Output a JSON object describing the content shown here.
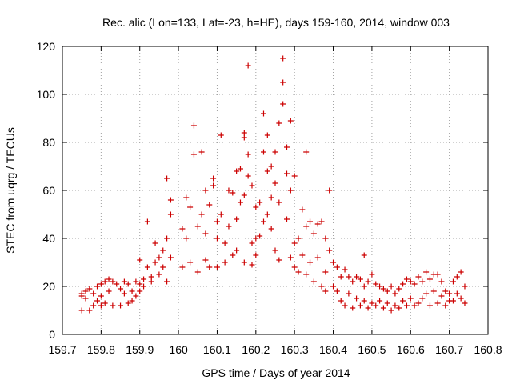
{
  "chart_data": {
    "type": "scatter",
    "title": "Rec. alic (Lon=133, Lat=-23, h=HE), days 159-160, 2014, window 003",
    "xlabel": "GPS time / Days of year 2014",
    "ylabel": "STEC from uqrg / TECUs",
    "xlim": [
      159.7,
      160.8
    ],
    "ylim": [
      0,
      120
    ],
    "x_ticks": [
      159.7,
      159.8,
      159.9,
      160.0,
      160.1,
      160.2,
      160.3,
      160.4,
      160.5,
      160.6,
      160.7,
      160.8
    ],
    "x_tick_labels": [
      "159.7",
      "159.8",
      "159.9",
      "160",
      "160.1",
      "160.2",
      "160.3",
      "160.4",
      "160.5",
      "160.6",
      "160.7",
      "160.8"
    ],
    "y_ticks": [
      0,
      20,
      40,
      60,
      80,
      100,
      120
    ],
    "y_tick_labels": [
      "0",
      "20",
      "40",
      "60",
      "80",
      "100",
      "120"
    ],
    "grid": true,
    "marker": "+",
    "color": "#cc0000",
    "points": [
      [
        159.75,
        17
      ],
      [
        159.75,
        16
      ],
      [
        159.75,
        10
      ],
      [
        159.76,
        18
      ],
      [
        159.76,
        15
      ],
      [
        159.77,
        19
      ],
      [
        159.77,
        10
      ],
      [
        159.78,
        17
      ],
      [
        159.78,
        12
      ],
      [
        159.79,
        20
      ],
      [
        159.79,
        14
      ],
      [
        159.8,
        21
      ],
      [
        159.8,
        16
      ],
      [
        159.8,
        12
      ],
      [
        159.81,
        22
      ],
      [
        159.81,
        13
      ],
      [
        159.82,
        23
      ],
      [
        159.82,
        18
      ],
      [
        159.83,
        22
      ],
      [
        159.83,
        12
      ],
      [
        159.84,
        21
      ],
      [
        159.85,
        19
      ],
      [
        159.85,
        12
      ],
      [
        159.86,
        22
      ],
      [
        159.86,
        17
      ],
      [
        159.87,
        21
      ],
      [
        159.87,
        13
      ],
      [
        159.88,
        18
      ],
      [
        159.88,
        14
      ],
      [
        159.89,
        22
      ],
      [
        159.89,
        16
      ],
      [
        159.9,
        21
      ],
      [
        159.9,
        18
      ],
      [
        159.9,
        31
      ],
      [
        159.91,
        23
      ],
      [
        159.91,
        20
      ],
      [
        159.92,
        47
      ],
      [
        159.92,
        28
      ],
      [
        159.93,
        24
      ],
      [
        159.93,
        22
      ],
      [
        159.94,
        38
      ],
      [
        159.94,
        30
      ],
      [
        159.95,
        32
      ],
      [
        159.95,
        25
      ],
      [
        159.96,
        35
      ],
      [
        159.96,
        28
      ],
      [
        159.97,
        65
      ],
      [
        159.97,
        40
      ],
      [
        159.97,
        22
      ],
      [
        159.98,
        56
      ],
      [
        159.98,
        50
      ],
      [
        159.98,
        32
      ],
      [
        160.01,
        44
      ],
      [
        160.01,
        28
      ],
      [
        160.02,
        57
      ],
      [
        160.02,
        40
      ],
      [
        160.03,
        53
      ],
      [
        160.03,
        30
      ],
      [
        160.04,
        87
      ],
      [
        160.04,
        75
      ],
      [
        160.05,
        45
      ],
      [
        160.05,
        26
      ],
      [
        160.06,
        76
      ],
      [
        160.06,
        50
      ],
      [
        160.07,
        60
      ],
      [
        160.07,
        42
      ],
      [
        160.07,
        31
      ],
      [
        160.08,
        54
      ],
      [
        160.08,
        28
      ],
      [
        160.09,
        62
      ],
      [
        160.09,
        65
      ],
      [
        160.1,
        47
      ],
      [
        160.1,
        40
      ],
      [
        160.1,
        28
      ],
      [
        160.11,
        83
      ],
      [
        160.11,
        50
      ],
      [
        160.12,
        38
      ],
      [
        160.12,
        30
      ],
      [
        160.13,
        60
      ],
      [
        160.13,
        45
      ],
      [
        160.14,
        59
      ],
      [
        160.14,
        33
      ],
      [
        160.15,
        68
      ],
      [
        160.15,
        48
      ],
      [
        160.15,
        35
      ],
      [
        160.16,
        69
      ],
      [
        160.16,
        55
      ],
      [
        160.17,
        84
      ],
      [
        160.17,
        82
      ],
      [
        160.17,
        58
      ],
      [
        160.17,
        30
      ],
      [
        160.18,
        75
      ],
      [
        160.18,
        112
      ],
      [
        160.18,
        66
      ],
      [
        160.19,
        62
      ],
      [
        160.19,
        38
      ],
      [
        160.19,
        29
      ],
      [
        160.2,
        53
      ],
      [
        160.2,
        40
      ],
      [
        160.2,
        33
      ],
      [
        160.21,
        55
      ],
      [
        160.21,
        41
      ],
      [
        160.22,
        92
      ],
      [
        160.22,
        76
      ],
      [
        160.22,
        47
      ],
      [
        160.23,
        83
      ],
      [
        160.23,
        68
      ],
      [
        160.23,
        50
      ],
      [
        160.24,
        70
      ],
      [
        160.24,
        57
      ],
      [
        160.24,
        44
      ],
      [
        160.25,
        76
      ],
      [
        160.25,
        63
      ],
      [
        160.25,
        35
      ],
      [
        160.26,
        88
      ],
      [
        160.26,
        55
      ],
      [
        160.26,
        31
      ],
      [
        160.27,
        115
      ],
      [
        160.27,
        105
      ],
      [
        160.27,
        96
      ],
      [
        160.28,
        78
      ],
      [
        160.28,
        67
      ],
      [
        160.28,
        48
      ],
      [
        160.29,
        89
      ],
      [
        160.29,
        60
      ],
      [
        160.29,
        32
      ],
      [
        160.3,
        66
      ],
      [
        160.3,
        38
      ],
      [
        160.3,
        28
      ],
      [
        160.31,
        40
      ],
      [
        160.31,
        26
      ],
      [
        160.32,
        52
      ],
      [
        160.32,
        33
      ],
      [
        160.33,
        76
      ],
      [
        160.33,
        45
      ],
      [
        160.33,
        25
      ],
      [
        160.34,
        47
      ],
      [
        160.34,
        30
      ],
      [
        160.35,
        42
      ],
      [
        160.35,
        22
      ],
      [
        160.36,
        46
      ],
      [
        160.36,
        32
      ],
      [
        160.37,
        47
      ],
      [
        160.37,
        20
      ],
      [
        160.38,
        40
      ],
      [
        160.38,
        26
      ],
      [
        160.38,
        18
      ],
      [
        160.39,
        60
      ],
      [
        160.39,
        35
      ],
      [
        160.4,
        30
      ],
      [
        160.4,
        20
      ],
      [
        160.41,
        28
      ],
      [
        160.41,
        18
      ],
      [
        160.42,
        24
      ],
      [
        160.42,
        14
      ],
      [
        160.43,
        27
      ],
      [
        160.43,
        12
      ],
      [
        160.44,
        24
      ],
      [
        160.44,
        17
      ],
      [
        160.45,
        22
      ],
      [
        160.45,
        11
      ],
      [
        160.46,
        24
      ],
      [
        160.46,
        15
      ],
      [
        160.47,
        23
      ],
      [
        160.47,
        12
      ],
      [
        160.48,
        33
      ],
      [
        160.48,
        20
      ],
      [
        160.48,
        14
      ],
      [
        160.49,
        22
      ],
      [
        160.49,
        11
      ],
      [
        160.5,
        25
      ],
      [
        160.5,
        13
      ],
      [
        160.51,
        21
      ],
      [
        160.51,
        12
      ],
      [
        160.52,
        20
      ],
      [
        160.52,
        14
      ],
      [
        160.53,
        19
      ],
      [
        160.53,
        11
      ],
      [
        160.54,
        18
      ],
      [
        160.54,
        13
      ],
      [
        160.55,
        20
      ],
      [
        160.55,
        10
      ],
      [
        160.56,
        17
      ],
      [
        160.56,
        12
      ],
      [
        160.57,
        19
      ],
      [
        160.57,
        11
      ],
      [
        160.58,
        21
      ],
      [
        160.58,
        14
      ],
      [
        160.59,
        23
      ],
      [
        160.59,
        12
      ],
      [
        160.6,
        22
      ],
      [
        160.6,
        15
      ],
      [
        160.61,
        21
      ],
      [
        160.61,
        12
      ],
      [
        160.62,
        24
      ],
      [
        160.62,
        13
      ],
      [
        160.63,
        22
      ],
      [
        160.63,
        15
      ],
      [
        160.64,
        26
      ],
      [
        160.64,
        17
      ],
      [
        160.65,
        23
      ],
      [
        160.65,
        12
      ],
      [
        160.66,
        25
      ],
      [
        160.66,
        18
      ],
      [
        160.67,
        25
      ],
      [
        160.67,
        13
      ],
      [
        160.68,
        22
      ],
      [
        160.68,
        16
      ],
      [
        160.69,
        18
      ],
      [
        160.69,
        12
      ],
      [
        160.7,
        17
      ],
      [
        160.7,
        14
      ],
      [
        160.71,
        22
      ],
      [
        160.71,
        14
      ],
      [
        160.72,
        24
      ],
      [
        160.72,
        17
      ],
      [
        160.73,
        26
      ],
      [
        160.73,
        15
      ],
      [
        160.74,
        20
      ],
      [
        160.74,
        13
      ]
    ]
  }
}
